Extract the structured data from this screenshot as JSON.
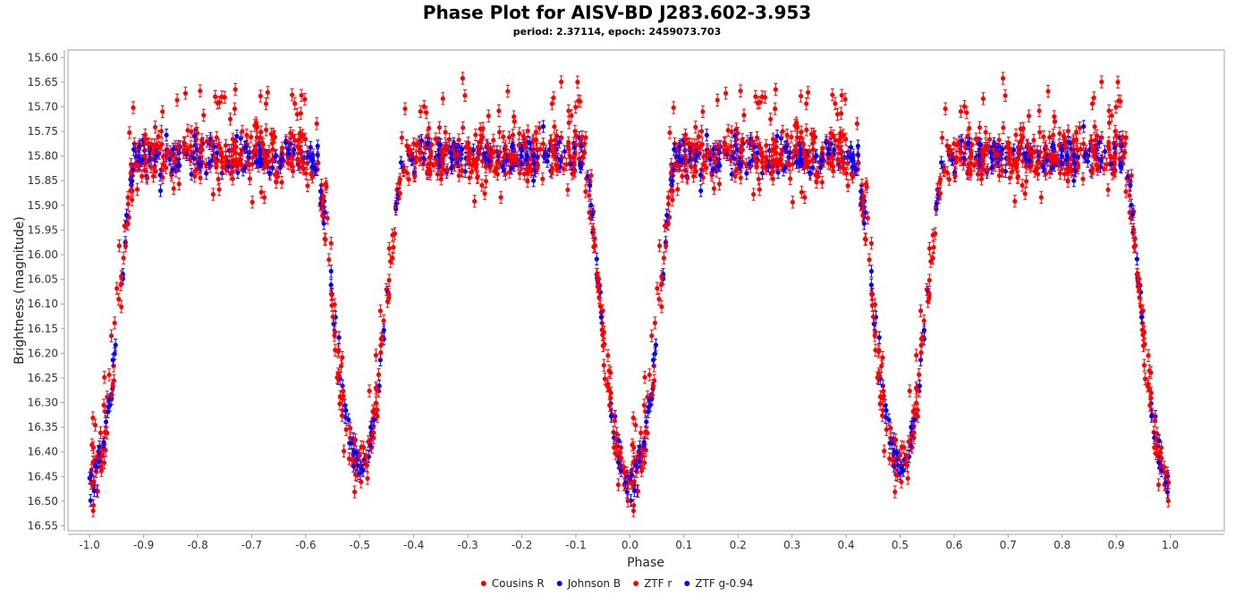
{
  "chart_data": {
    "type": "scatter",
    "title": "Phase Plot for AISV-BD J283.602-3.953",
    "subtitle": "period: 2.37114, epoch: 2459073.703",
    "xlabel": "Phase",
    "ylabel": "Brightness (magnitude)",
    "xlim": [
      -1.04,
      1.1
    ],
    "ylim": [
      15.585,
      16.56
    ],
    "y_inverted": true,
    "x_ticks": [
      "-1.0",
      "-0.9",
      "-0.8",
      "-0.7",
      "-0.6",
      "-0.5",
      "-0.4",
      "-0.3",
      "-0.2",
      "-0.1",
      "0.0",
      "0.1",
      "0.2",
      "0.3",
      "0.4",
      "0.5",
      "0.6",
      "0.7",
      "0.8",
      "0.9",
      "1.0"
    ],
    "y_ticks": [
      "15.60",
      "15.65",
      "15.70",
      "15.75",
      "15.80",
      "15.85",
      "15.90",
      "15.95",
      "16.00",
      "16.05",
      "16.10",
      "16.15",
      "16.20",
      "16.25",
      "16.30",
      "16.35",
      "16.40",
      "16.45",
      "16.50",
      "16.55"
    ],
    "grid": false,
    "legend_position": "bottom",
    "light_curve_model": {
      "base_magnitude": 15.8,
      "primary_minimum": {
        "phase": 0.0,
        "magnitude": 16.47
      },
      "secondary_minimum": {
        "phase": 0.5,
        "magnitude": 16.43
      },
      "plateau_scatter": 0.05,
      "error_bar": 0.012,
      "points_per_cycle": 1100
    },
    "series": [
      {
        "name": "Cousins R",
        "color": "#ff0000",
        "marker": "circle",
        "fraction": 0.45
      },
      {
        "name": "Johnson B",
        "color": "#0000ff",
        "marker": "circle",
        "fraction": 0.2
      },
      {
        "name": "ZTF r",
        "color": "#ff0000",
        "marker": "circle",
        "fraction": 0.25
      },
      {
        "name": "ZTF g-0.94",
        "color": "#0000ff",
        "marker": "circle",
        "fraction": 0.1
      }
    ]
  }
}
